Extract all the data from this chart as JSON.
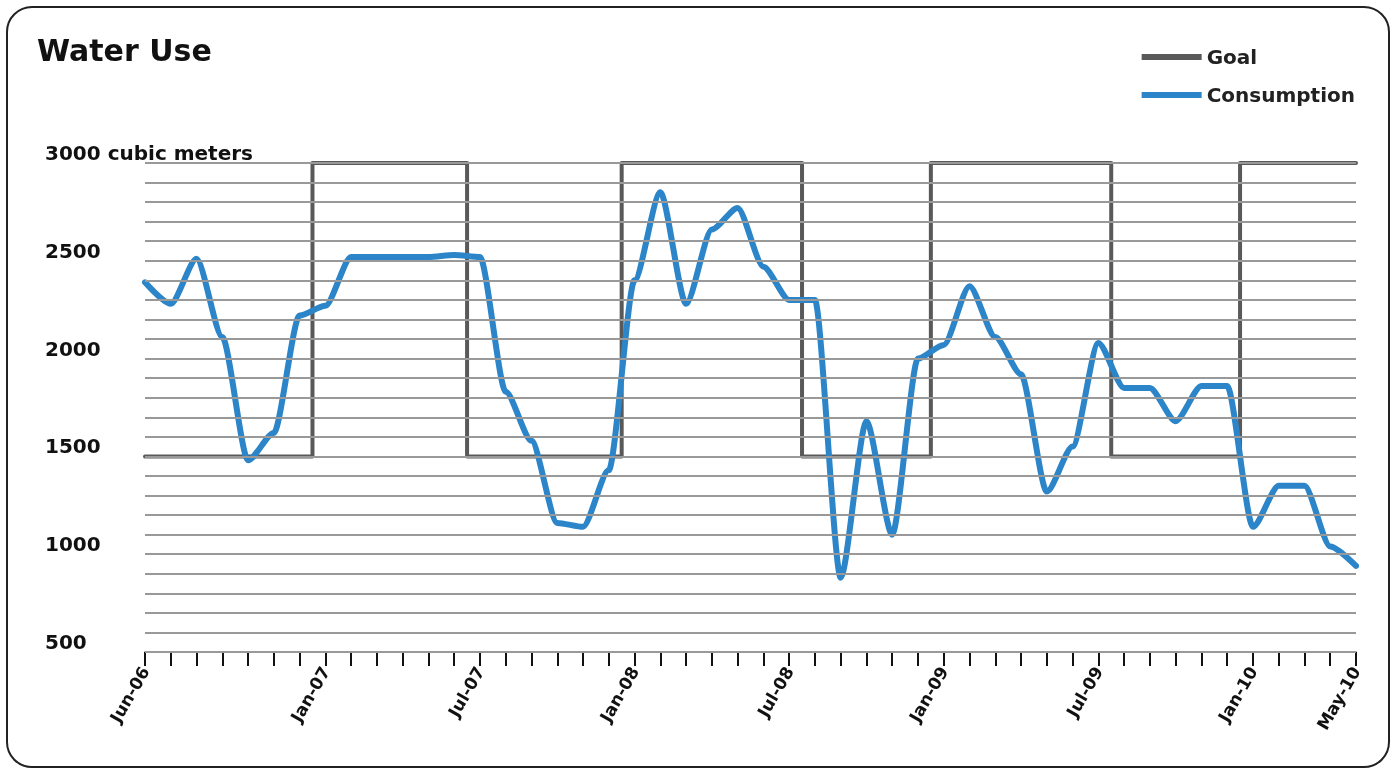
{
  "chart_data": {
    "type": "line",
    "title": "Water Use",
    "categories": [
      "Jun-06",
      null,
      null,
      null,
      null,
      null,
      null,
      "Jan-07",
      null,
      null,
      null,
      null,
      null,
      "Jul-07",
      null,
      null,
      null,
      null,
      null,
      "Jan-08",
      null,
      null,
      null,
      null,
      null,
      "Jul-08",
      null,
      null,
      null,
      null,
      null,
      "Jan-09",
      null,
      null,
      null,
      null,
      null,
      "Jul-09",
      null,
      null,
      null,
      null,
      null,
      "Jan-10",
      null,
      null,
      null,
      "May-10"
    ],
    "series": [
      {
        "name": "Goal",
        "type": "step",
        "color": "#595959",
        "values": [
          1500,
          1500,
          1500,
          1500,
          1500,
          1500,
          1500,
          3000,
          3000,
          3000,
          3000,
          3000,
          3000,
          1500,
          1500,
          1500,
          1500,
          1500,
          1500,
          3000,
          3000,
          3000,
          3000,
          3000,
          3000,
          3000,
          1500,
          1500,
          1500,
          1500,
          1500,
          3000,
          3000,
          3000,
          3000,
          3000,
          3000,
          3000,
          1500,
          1500,
          1500,
          1500,
          1500,
          3000,
          3000,
          3000,
          3000,
          3000
        ]
      },
      {
        "name": "Consumption",
        "type": "line",
        "color": "#2b85c8",
        "values": [
          2390,
          2280,
          2510,
          2110,
          1480,
          1620,
          2220,
          2270,
          2520,
          2520,
          2520,
          2520,
          2530,
          2520,
          1830,
          1580,
          1160,
          1140,
          1430,
          2400,
          2850,
          2280,
          2660,
          2770,
          2470,
          2300,
          2300,
          880,
          1680,
          1100,
          2000,
          2070,
          2370,
          2110,
          1920,
          1320,
          1550,
          2080,
          1850,
          1850,
          1680,
          1860,
          1860,
          1140,
          1350,
          1350,
          1040,
          940
        ]
      }
    ],
    "ylim": [
      500,
      3000
    ],
    "yticks": [
      500,
      {
        "value": 600,
        "label": null
      },
      {
        "value": 700,
        "label": null
      },
      {
        "value": 800,
        "label": null
      },
      {
        "value": 900,
        "label": null
      },
      1000,
      {
        "value": 1100,
        "label": null
      },
      {
        "value": 1200,
        "label": null
      },
      {
        "value": 1300,
        "label": null
      },
      {
        "value": 1400,
        "label": null
      },
      1500,
      {
        "value": 1600,
        "label": null
      },
      {
        "value": 1700,
        "label": null
      },
      {
        "value": 1800,
        "label": null
      },
      {
        "value": 1900,
        "label": null
      },
      2000,
      {
        "value": 2100,
        "label": null
      },
      {
        "value": 2200,
        "label": null
      },
      {
        "value": 2300,
        "label": null
      },
      {
        "value": 2400,
        "label": null
      },
      2500,
      {
        "value": 2600,
        "label": null
      },
      {
        "value": 2700,
        "label": null
      },
      {
        "value": 2800,
        "label": null
      },
      {
        "value": 2900,
        "label": null
      },
      {
        "value": 3000,
        "label": "3000 cubic meters"
      }
    ],
    "grid": "y",
    "legend": "top right",
    "marker": "none",
    "line_style": "solid"
  }
}
